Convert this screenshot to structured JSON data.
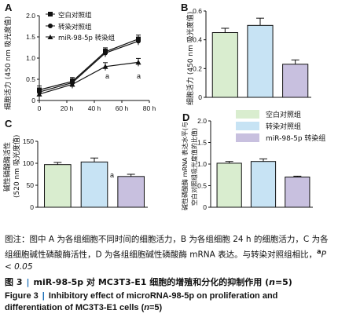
{
  "panels": [
    {
      "letter": "A",
      "ylabel": "细胞活力 (450 nm 吸光度值)",
      "xticks": [
        "0",
        "20 h",
        "40 h",
        "60 h",
        "80 h"
      ],
      "yticks": [
        "0",
        "0.5",
        "1.0",
        "1.5",
        "2.0"
      ],
      "legend": [
        "空白对照组",
        "转染对照组",
        "miR-98-5p 转染组"
      ],
      "annotations": [
        "a",
        "a"
      ]
    },
    {
      "letter": "B",
      "ylabel": "细胞活力 (450 nm 吸光度值)",
      "yticks": [
        "0",
        "0.2",
        "0.4",
        "0.6"
      ],
      "legend": []
    },
    {
      "letter": "C",
      "ylabel_lines": [
        "碱性磷酸酶活性",
        "(520 nm 吸光度值)"
      ],
      "yticks": [
        "0",
        "50",
        "100",
        "150"
      ],
      "annotations": [
        "a"
      ]
    },
    {
      "letter": "D",
      "ylabel_lines": [
        "碱性磷酸酶 mRNA 表达水平(与",
        "空白对照组吸光度值的比值)"
      ],
      "yticks": [
        "0",
        "0.5",
        "1.0",
        "1.5",
        "2.0"
      ],
      "legend": [
        "空白对照组",
        "转染对照组",
        "miR-98-5p 转染组"
      ]
    }
  ],
  "chart_data": [
    {
      "type": "line",
      "x": [
        0,
        24,
        48,
        72
      ],
      "ylim": [
        0,
        2.0
      ],
      "series": [
        {
          "name": "空白对照组",
          "marker": "square",
          "values": [
            0.25,
            0.45,
            1.15,
            1.45
          ]
        },
        {
          "name": "转染对照组",
          "marker": "circle",
          "values": [
            0.2,
            0.42,
            1.12,
            1.4
          ]
        },
        {
          "name": "miR-98-5p 转染组",
          "marker": "triangle",
          "values": [
            0.15,
            0.38,
            0.8,
            0.9
          ]
        }
      ]
    },
    {
      "type": "bar",
      "categories": [
        "空白对照组",
        "转染对照组",
        "miR-98-5p 转染组"
      ],
      "values": [
        0.45,
        0.5,
        0.23
      ],
      "errors": [
        0.03,
        0.05,
        0.03
      ],
      "ylim": [
        0,
        0.6
      ]
    },
    {
      "type": "bar",
      "categories": [
        "空白对照组",
        "转染对照组",
        "miR-98-5p 转染组"
      ],
      "values": [
        97,
        103,
        70
      ],
      "errors": [
        5,
        9,
        5
      ],
      "ylim": [
        0,
        150
      ]
    },
    {
      "type": "bar",
      "categories": [
        "空白对照组",
        "转染对照组",
        "miR-98-5p 转染组"
      ],
      "values": [
        1.02,
        1.06,
        0.7
      ],
      "errors": [
        0.04,
        0.06,
        0.02
      ],
      "ylim": [
        0,
        2.0
      ]
    }
  ],
  "colors": {
    "bar_control": "#d9edcf",
    "bar_transfect": "#c7e3f4",
    "bar_mir": "#c8c0df",
    "caption_pipe": "#1a6fb8"
  },
  "caption": {
    "note": "图注：图中 A 为各组细胞不同时间的细胞活力，B 为各组细胞 24 h 的细胞活力，C 为各组细胞碱性磷酸酶活性，D 为各组细胞碱性磷酸酶 mRNA 表达。与转染对照组相比，",
    "note_sup": "a",
    "note_end": "P < 0.05",
    "title_cn_prefix": "图 3",
    "title_cn": "miR-98-5p 对 MC3T3-E1 细胞的增殖和分化的抑制作用 (",
    "title_cn_n": "n",
    "title_cn_end": "=5)",
    "title_en_prefix": "Figure 3",
    "title_en": "Inhibitory effect of microRNA-98-5p on proliferation and differentiation of MC3T3-E1 cells (",
    "title_en_n": "n",
    "title_en_end": "=5)"
  }
}
